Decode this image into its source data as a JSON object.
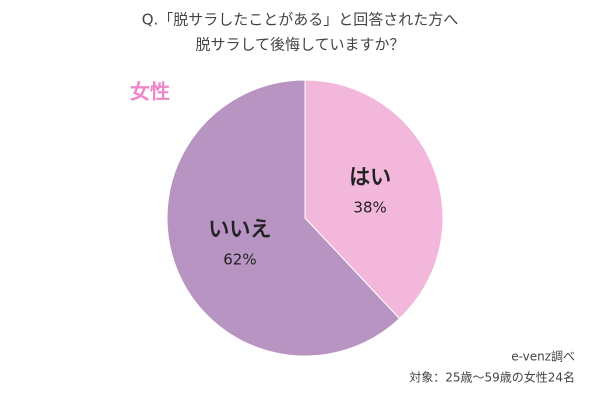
{
  "chart_data": {
    "type": "pie",
    "title": [
      "Q.「脱サラしたことがある」と回答された方へ",
      "脱サラして後悔していますか？"
    ],
    "subtitle": "女性",
    "categories": [
      "はい",
      "いいえ"
    ],
    "values": [
      38,
      62
    ],
    "value_labels": [
      "38%",
      "62%"
    ],
    "colors": [
      "#f4b7dc",
      "#b894c3"
    ],
    "source": [
      "e-venz調べ",
      "対象：25歳～59歳の女性24名"
    ]
  }
}
